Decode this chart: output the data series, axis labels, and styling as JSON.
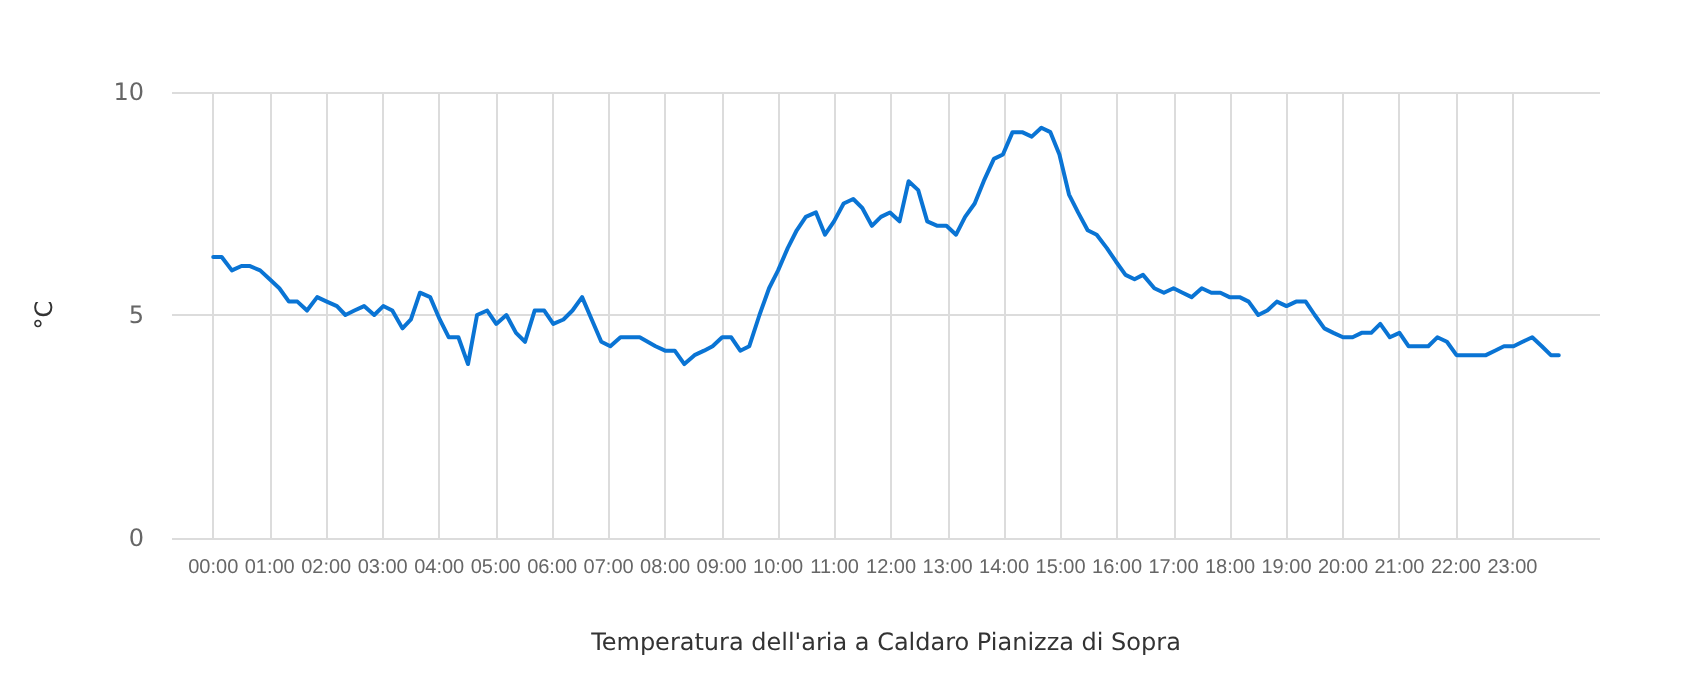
{
  "chart_data": {
    "type": "line",
    "xlabel": "Temperatura dell'aria a Caldaro Pianizza di Sopra",
    "ylabel": "°C",
    "xlim": [
      -0.73,
      24.55
    ],
    "xticks": [
      {
        "value": 0,
        "label": "00:00"
      },
      {
        "value": 1,
        "label": "01:00"
      },
      {
        "value": 2,
        "label": "02:00"
      },
      {
        "value": 3,
        "label": "03:00"
      },
      {
        "value": 4,
        "label": "04:00"
      },
      {
        "value": 5,
        "label": "05:00"
      },
      {
        "value": 6,
        "label": "06:00"
      },
      {
        "value": 7,
        "label": "07:00"
      },
      {
        "value": 8,
        "label": "08:00"
      },
      {
        "value": 9,
        "label": "09:00"
      },
      {
        "value": 10,
        "label": "10:00"
      },
      {
        "value": 11,
        "label": "11:00"
      },
      {
        "value": 12,
        "label": "12:00"
      },
      {
        "value": 13,
        "label": "13:00"
      },
      {
        "value": 14,
        "label": "14:00"
      },
      {
        "value": 15,
        "label": "15:00"
      },
      {
        "value": 16,
        "label": "16:00"
      },
      {
        "value": 17,
        "label": "17:00"
      },
      {
        "value": 18,
        "label": "18:00"
      },
      {
        "value": 19,
        "label": "19:00"
      },
      {
        "value": 20,
        "label": "20:00"
      },
      {
        "value": 21,
        "label": "21:00"
      },
      {
        "value": 22,
        "label": "22:00"
      },
      {
        "value": 23,
        "label": "23:00"
      }
    ],
    "ylim": [
      0,
      10
    ],
    "yticks": [
      0,
      5,
      10
    ],
    "grid": true,
    "marker": "none",
    "line_style": "solid",
    "x": [
      0,
      0.15,
      0.33,
      0.5,
      0.64,
      0.83,
      1.0,
      1.17,
      1.34,
      1.49,
      1.66,
      1.84,
      2.01,
      2.19,
      2.34,
      2.5,
      2.67,
      2.85,
      3.01,
      3.17,
      3.35,
      3.5,
      3.66,
      3.84,
      4.01,
      4.17,
      4.34,
      4.51,
      4.67,
      4.85,
      5.01,
      5.19,
      5.36,
      5.52,
      5.69,
      5.86,
      6.02,
      6.2,
      6.36,
      6.53,
      6.7,
      6.87,
      7.03,
      7.21,
      7.55,
      7.83,
      8.0,
      8.17,
      8.34,
      8.52,
      8.69,
      8.84,
      9.01,
      9.17,
      9.33,
      9.49,
      9.67,
      9.84,
      10.0,
      10.17,
      10.33,
      10.49,
      10.67,
      10.83,
      10.99,
      11.16,
      11.33,
      11.49,
      11.66,
      11.82,
      11.98,
      12.15,
      12.31,
      12.48,
      12.64,
      12.82,
      12.98,
      13.15,
      13.31,
      13.48,
      13.64,
      13.82,
      13.98,
      14.15,
      14.32,
      14.49,
      14.66,
      14.82,
      14.98,
      15.15,
      15.31,
      15.48,
      15.64,
      15.82,
      15.98,
      16.15,
      16.31,
      16.46,
      16.66,
      16.83,
      17.0,
      17.16,
      17.32,
      17.5,
      17.67,
      17.83,
      17.99,
      18.17,
      18.33,
      18.5,
      18.66,
      18.83,
      19.0,
      19.17,
      19.34,
      19.5,
      19.67,
      19.83,
      20.0,
      20.17,
      20.33,
      20.5,
      20.66,
      20.83,
      21.0,
      21.16,
      21.34,
      21.51,
      21.67,
      21.84,
      22.01,
      22.18,
      22.35,
      22.53,
      22.69,
      22.85,
      23.02,
      23.18,
      23.35,
      23.52,
      23.68,
      23.82
    ],
    "series": [
      {
        "color": "#0a74d4",
        "values": [
          6.3,
          6.3,
          6.0,
          6.1,
          6.1,
          6.0,
          5.8,
          5.6,
          5.3,
          5.3,
          5.1,
          5.4,
          5.3,
          5.2,
          5.0,
          5.1,
          5.2,
          5.0,
          5.2,
          5.1,
          4.7,
          4.9,
          5.5,
          5.4,
          4.9,
          4.5,
          4.5,
          3.9,
          5.0,
          5.1,
          4.8,
          5.0,
          4.6,
          4.4,
          5.1,
          5.1,
          4.8,
          4.9,
          5.1,
          5.4,
          4.9,
          4.4,
          4.3,
          4.5,
          4.5,
          4.3,
          4.2,
          4.2,
          3.9,
          4.1,
          4.2,
          4.3,
          4.5,
          4.5,
          4.2,
          4.3,
          5.0,
          5.6,
          6.0,
          6.5,
          6.9,
          7.2,
          7.3,
          6.8,
          7.1,
          7.5,
          7.6,
          7.4,
          7.0,
          7.2,
          7.3,
          7.1,
          8.0,
          7.8,
          7.1,
          7.0,
          7.0,
          6.8,
          7.2,
          7.5,
          8.0,
          8.5,
          8.6,
          9.1,
          9.1,
          9.0,
          9.2,
          9.1,
          8.6,
          7.7,
          7.3,
          6.9,
          6.8,
          6.5,
          6.2,
          5.9,
          5.8,
          5.9,
          5.6,
          5.5,
          5.6,
          5.5,
          5.4,
          5.6,
          5.5,
          5.5,
          5.4,
          5.4,
          5.3,
          5.0,
          5.1,
          5.3,
          5.2,
          5.3,
          5.3,
          5.0,
          4.7,
          4.6,
          4.5,
          4.5,
          4.6,
          4.6,
          4.8,
          4.5,
          4.6,
          4.3,
          4.3,
          4.3,
          4.5,
          4.4,
          4.1,
          4.1,
          4.1,
          4.1,
          4.2,
          4.3,
          4.3,
          4.4,
          4.5,
          4.3,
          4.1,
          4.1
        ]
      }
    ]
  }
}
